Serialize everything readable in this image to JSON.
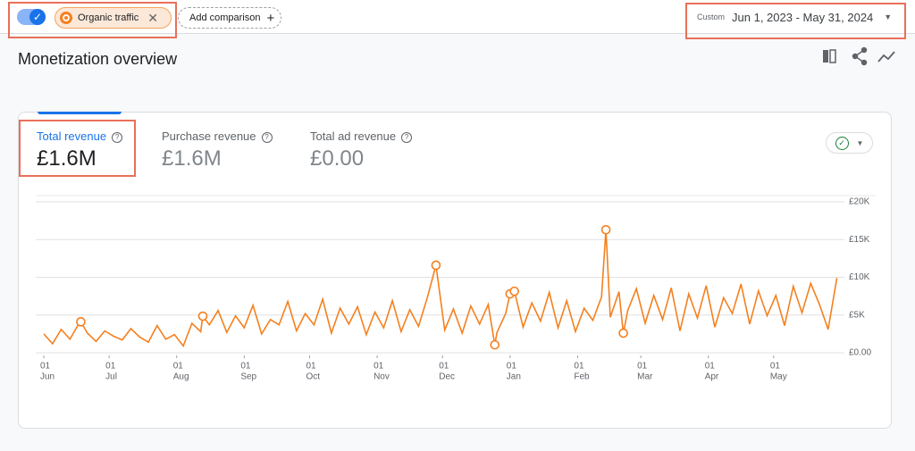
{
  "toolbar": {
    "segment": "Organic traffic",
    "add_comparison": "Add comparison",
    "date_mode": "Custom",
    "date_range": "Jun 1, 2023 - May 31, 2024"
  },
  "header": {
    "title": "Monetization overview"
  },
  "metrics": [
    {
      "label": "Total revenue",
      "value": "£1.6M"
    },
    {
      "label": "Purchase revenue",
      "value": "£1.6M"
    },
    {
      "label": "Total ad revenue",
      "value": "£0.00"
    }
  ],
  "chart_data": {
    "type": "line",
    "x": [
      0,
      4,
      8,
      12,
      16,
      17,
      20,
      24,
      28,
      32,
      36,
      40,
      44,
      48,
      52,
      56,
      60,
      64,
      68,
      72,
      73,
      76,
      80,
      84,
      88,
      92,
      96,
      100,
      104,
      108,
      112,
      116,
      120,
      124,
      128,
      132,
      136,
      140,
      144,
      148,
      152,
      156,
      160,
      164,
      168,
      172,
      176,
      180,
      184,
      188,
      192,
      196,
      200,
      204,
      207,
      208,
      212,
      214,
      216,
      220,
      224,
      228,
      232,
      236,
      240,
      244,
      248,
      252,
      256,
      258,
      260,
      264,
      266,
      268,
      272,
      276,
      280,
      284,
      288,
      292,
      296,
      300,
      304,
      308,
      312,
      316,
      320,
      324,
      328,
      332,
      336,
      340,
      344,
      348,
      352,
      356,
      360,
      364
    ],
    "values": [
      2500,
      1200,
      3100,
      1800,
      3800,
      4100,
      2600,
      1500,
      2900,
      2200,
      1700,
      3200,
      2100,
      1400,
      3600,
      1800,
      2400,
      900,
      3900,
      2800,
      4850,
      3700,
      5600,
      2700,
      4900,
      3300,
      6300,
      2500,
      4400,
      3700,
      6800,
      2900,
      5200,
      3700,
      7100,
      2600,
      5900,
      3800,
      6100,
      2400,
      5400,
      3300,
      6900,
      2800,
      5700,
      3500,
      7300,
      11600,
      3000,
      5800,
      2600,
      6200,
      3800,
      6400,
      1050,
      2700,
      5200,
      7800,
      8150,
      3400,
      6600,
      4200,
      8000,
      3300,
      6900,
      2800,
      5900,
      4300,
      7400,
      16300,
      4700,
      8100,
      2600,
      5600,
      8500,
      3900,
      7600,
      4400,
      8600,
      2900,
      7800,
      4600,
      8900,
      3400,
      7300,
      5200,
      9100,
      3800,
      8200,
      4900,
      7600,
      3600,
      8800,
      5300,
      9200,
      6400,
      3100,
      9900
    ],
    "color": "#f4801f",
    "highlighted_x": [
      17,
      73,
      180,
      207,
      214,
      216,
      258,
      266
    ],
    "xlim": [
      0,
      365
    ],
    "xticks": [
      {
        "value": 0,
        "day": "01",
        "month": "Jun"
      },
      {
        "value": 30,
        "day": "01",
        "month": "Jul"
      },
      {
        "value": 61,
        "day": "01",
        "month": "Aug"
      },
      {
        "value": 92,
        "day": "01",
        "month": "Sep"
      },
      {
        "value": 122,
        "day": "01",
        "month": "Oct"
      },
      {
        "value": 153,
        "day": "01",
        "month": "Nov"
      },
      {
        "value": 183,
        "day": "01",
        "month": "Dec"
      },
      {
        "value": 214,
        "day": "01",
        "month": "Jan"
      },
      {
        "value": 245,
        "day": "01",
        "month": "Feb"
      },
      {
        "value": 274,
        "day": "01",
        "month": "Mar"
      },
      {
        "value": 305,
        "day": "01",
        "month": "Apr"
      },
      {
        "value": 335,
        "day": "01",
        "month": "May"
      }
    ],
    "ylim": [
      0,
      20000
    ],
    "yticks": [
      {
        "value": 0,
        "label": "£0.00"
      },
      {
        "value": 5000,
        "label": "£5K"
      },
      {
        "value": 10000,
        "label": "£10K"
      },
      {
        "value": 15000,
        "label": "£15K"
      },
      {
        "value": 20000,
        "label": "£20K"
      }
    ],
    "grid": true
  }
}
